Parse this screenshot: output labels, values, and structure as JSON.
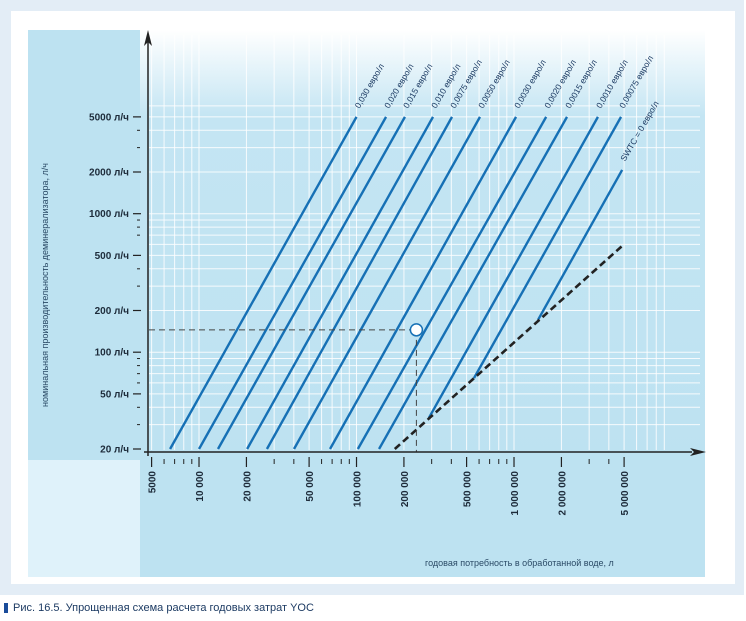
{
  "caption": "Рис. 16.5. Упрощенная схема расчета годовых затрат YOC",
  "colors": {
    "line": "#1670b5",
    "panel": "#bde2f1",
    "panel_light": "#dff2fa",
    "grid": "#ffffff",
    "dashed": "#222222"
  },
  "chart_data": {
    "type": "line",
    "xlabel": "годовая потребность в обработанной воде, л",
    "ylabel": "номинальная производительность деминерализатора, л/ч",
    "x_scale": "log",
    "y_scale": "log",
    "xlim": [
      5000,
      9000000
    ],
    "ylim": [
      20,
      10000
    ],
    "grid": true,
    "x_ticks": [
      {
        "value": 5000,
        "label": "5000"
      },
      {
        "value": 10000,
        "label": "10 000"
      },
      {
        "value": 20000,
        "label": "20 000"
      },
      {
        "value": 50000,
        "label": "50 000"
      },
      {
        "value": 100000,
        "label": "100 000"
      },
      {
        "value": 200000,
        "label": "200 000"
      },
      {
        "value": 500000,
        "label": "500 000"
      },
      {
        "value": 1000000,
        "label": "1 000 000"
      },
      {
        "value": 2000000,
        "label": "2 000 000"
      },
      {
        "value": 5000000,
        "label": "5 000 000"
      }
    ],
    "y_ticks": [
      {
        "value": 5000,
        "label": "5000 л/ч"
      },
      {
        "value": 2000,
        "label": "2000 л/ч"
      },
      {
        "value": 1000,
        "label": "1000 л/ч"
      },
      {
        "value": 500,
        "label": "500 л/ч"
      },
      {
        "value": 200,
        "label": "200 л/ч"
      },
      {
        "value": 100,
        "label": "100 л/ч"
      },
      {
        "value": 50,
        "label": "50 л/ч"
      },
      {
        "value": 20,
        "label": "20 л/ч"
      }
    ],
    "series": [
      {
        "name": "0,030 евро/л",
        "points": [
          [
            6550,
            20
          ],
          [
            100000,
            5000
          ]
        ]
      },
      {
        "name": "0,020 евро/л",
        "points": [
          [
            10000,
            20
          ],
          [
            154000,
            5000
          ]
        ]
      },
      {
        "name": "0,015 евро/л",
        "points": [
          [
            13200,
            20
          ],
          [
            203000,
            5000
          ]
        ]
      },
      {
        "name": "0,010 евро/л",
        "points": [
          [
            20200,
            20
          ],
          [
            306000,
            5000
          ]
        ]
      },
      {
        "name": "0,0075 евро/л",
        "points": [
          [
            27000,
            20
          ],
          [
            404000,
            5000
          ]
        ]
      },
      {
        "name": "0,0050 евро/л",
        "points": [
          [
            40100,
            20
          ],
          [
            608000,
            5000
          ]
        ]
      },
      {
        "name": "0,0030 евро/л",
        "points": [
          [
            67900,
            20
          ],
          [
            1030000,
            5000
          ]
        ]
      },
      {
        "name": "0,0020 евро/л",
        "points": [
          [
            102000,
            20
          ],
          [
            1600000,
            5000
          ]
        ]
      },
      {
        "name": "0,0015 евро/л",
        "points": [
          [
            139000,
            20
          ],
          [
            2170000,
            5000
          ]
        ]
      },
      {
        "name": "0,0010 евро/л",
        "points": [
          [
            288000,
            33.5
          ],
          [
            3410000,
            5000
          ]
        ]
      },
      {
        "name": "0,00075 евро/л",
        "points": [
          [
            557000,
            65
          ],
          [
            4780000,
            5000
          ]
        ]
      },
      {
        "name": "SWTC = 0 евро/л",
        "points": [
          [
            1420000,
            171
          ],
          [
            4860000,
            2070
          ]
        ]
      }
    ],
    "boundary_dashed": {
      "points": [
        [
          175000,
          20
        ],
        [
          4860000,
          585
        ]
      ]
    },
    "example_point": {
      "x": 240000,
      "y": 145
    }
  }
}
